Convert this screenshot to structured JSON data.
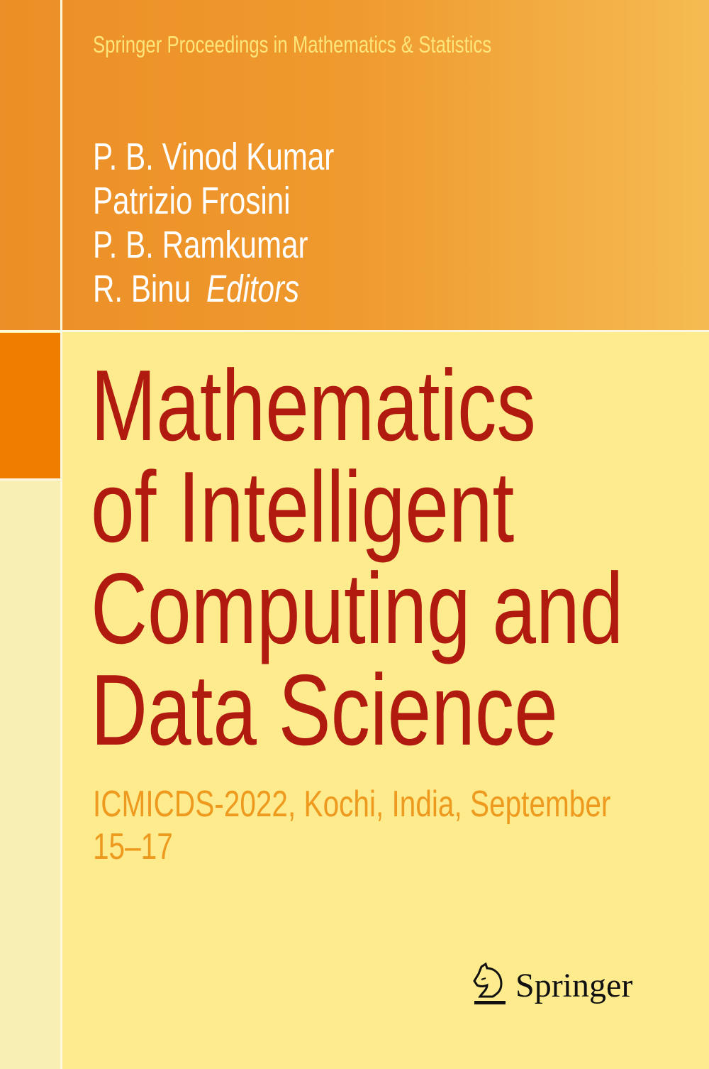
{
  "cover": {
    "series": "Springer Proceedings in Mathematics & Statistics",
    "editors": [
      "P. B. Vinod Kumar",
      "Patrizio Frosini",
      "P. B. Ramkumar",
      "R. Binu"
    ],
    "editors_role": "Editors",
    "title_lines": [
      "Mathematics",
      "of Intelligent",
      "Computing and",
      "Data Science"
    ],
    "subtitle_lines": [
      "ICMICDS-2022, Kochi, India, September",
      "15–17"
    ],
    "publisher": "Springer",
    "colors": {
      "title": "#b01a0f",
      "subtitle": "#ee9a1e",
      "background": "#fdeb8d",
      "band": "#ef9a2e",
      "accent": "#ef7d00"
    }
  }
}
